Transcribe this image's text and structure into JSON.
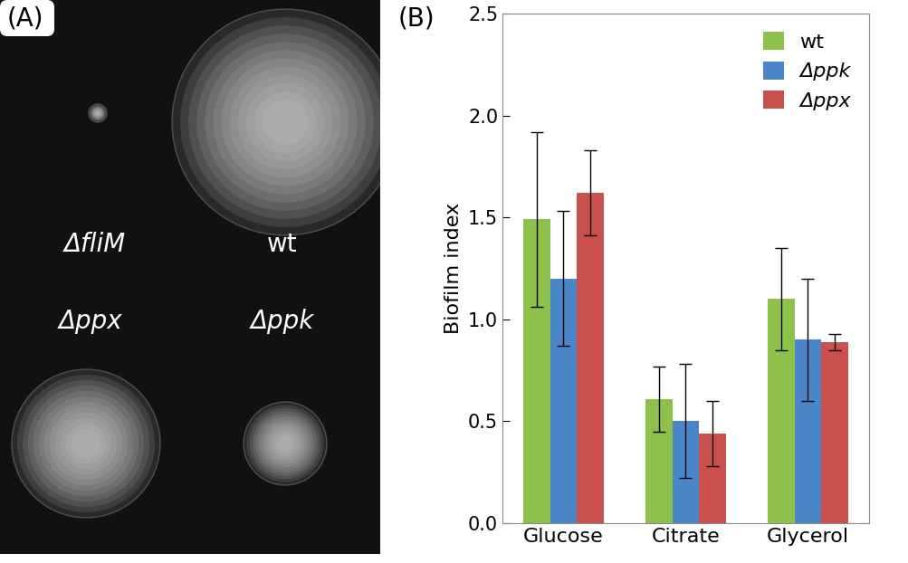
{
  "chart_data": {
    "type": "bar",
    "title": "(B)",
    "categories": [
      "Glucose",
      "Citrate",
      "Glycerol"
    ],
    "y_label": "Biofilm index",
    "series": [
      {
        "name": "wt",
        "color": "#8dc14b",
        "values": [
          1.49,
          0.61,
          1.1
        ],
        "errors": [
          0.43,
          0.16,
          0.25
        ]
      },
      {
        "name": "Δppk",
        "color": "#4a86c8",
        "values": [
          1.2,
          0.5,
          0.9
        ],
        "errors": [
          0.33,
          0.28,
          0.3
        ]
      },
      {
        "name": "Δppx",
        "color": "#c9504c",
        "values": [
          1.62,
          0.44,
          0.89
        ],
        "errors": [
          0.21,
          0.16,
          0.04
        ]
      }
    ],
    "ylim": [
      0,
      2.5
    ],
    "yticks": [
      {
        "value": 0,
        "label": "0.0"
      },
      {
        "value": 0.5,
        "label": "0.5"
      },
      {
        "value": 1.0,
        "label": "1.0"
      },
      {
        "value": 1.5,
        "label": "1.5"
      },
      {
        "value": 2.0,
        "label": "2.0"
      },
      {
        "value": 2.5,
        "label": "2.5"
      }
    ],
    "legend": "upper right",
    "grid": false
  },
  "image_panel": {
    "label": "(A)",
    "strains": [
      "ΔfliM",
      "wt",
      "Δppx",
      "Δppk"
    ]
  }
}
